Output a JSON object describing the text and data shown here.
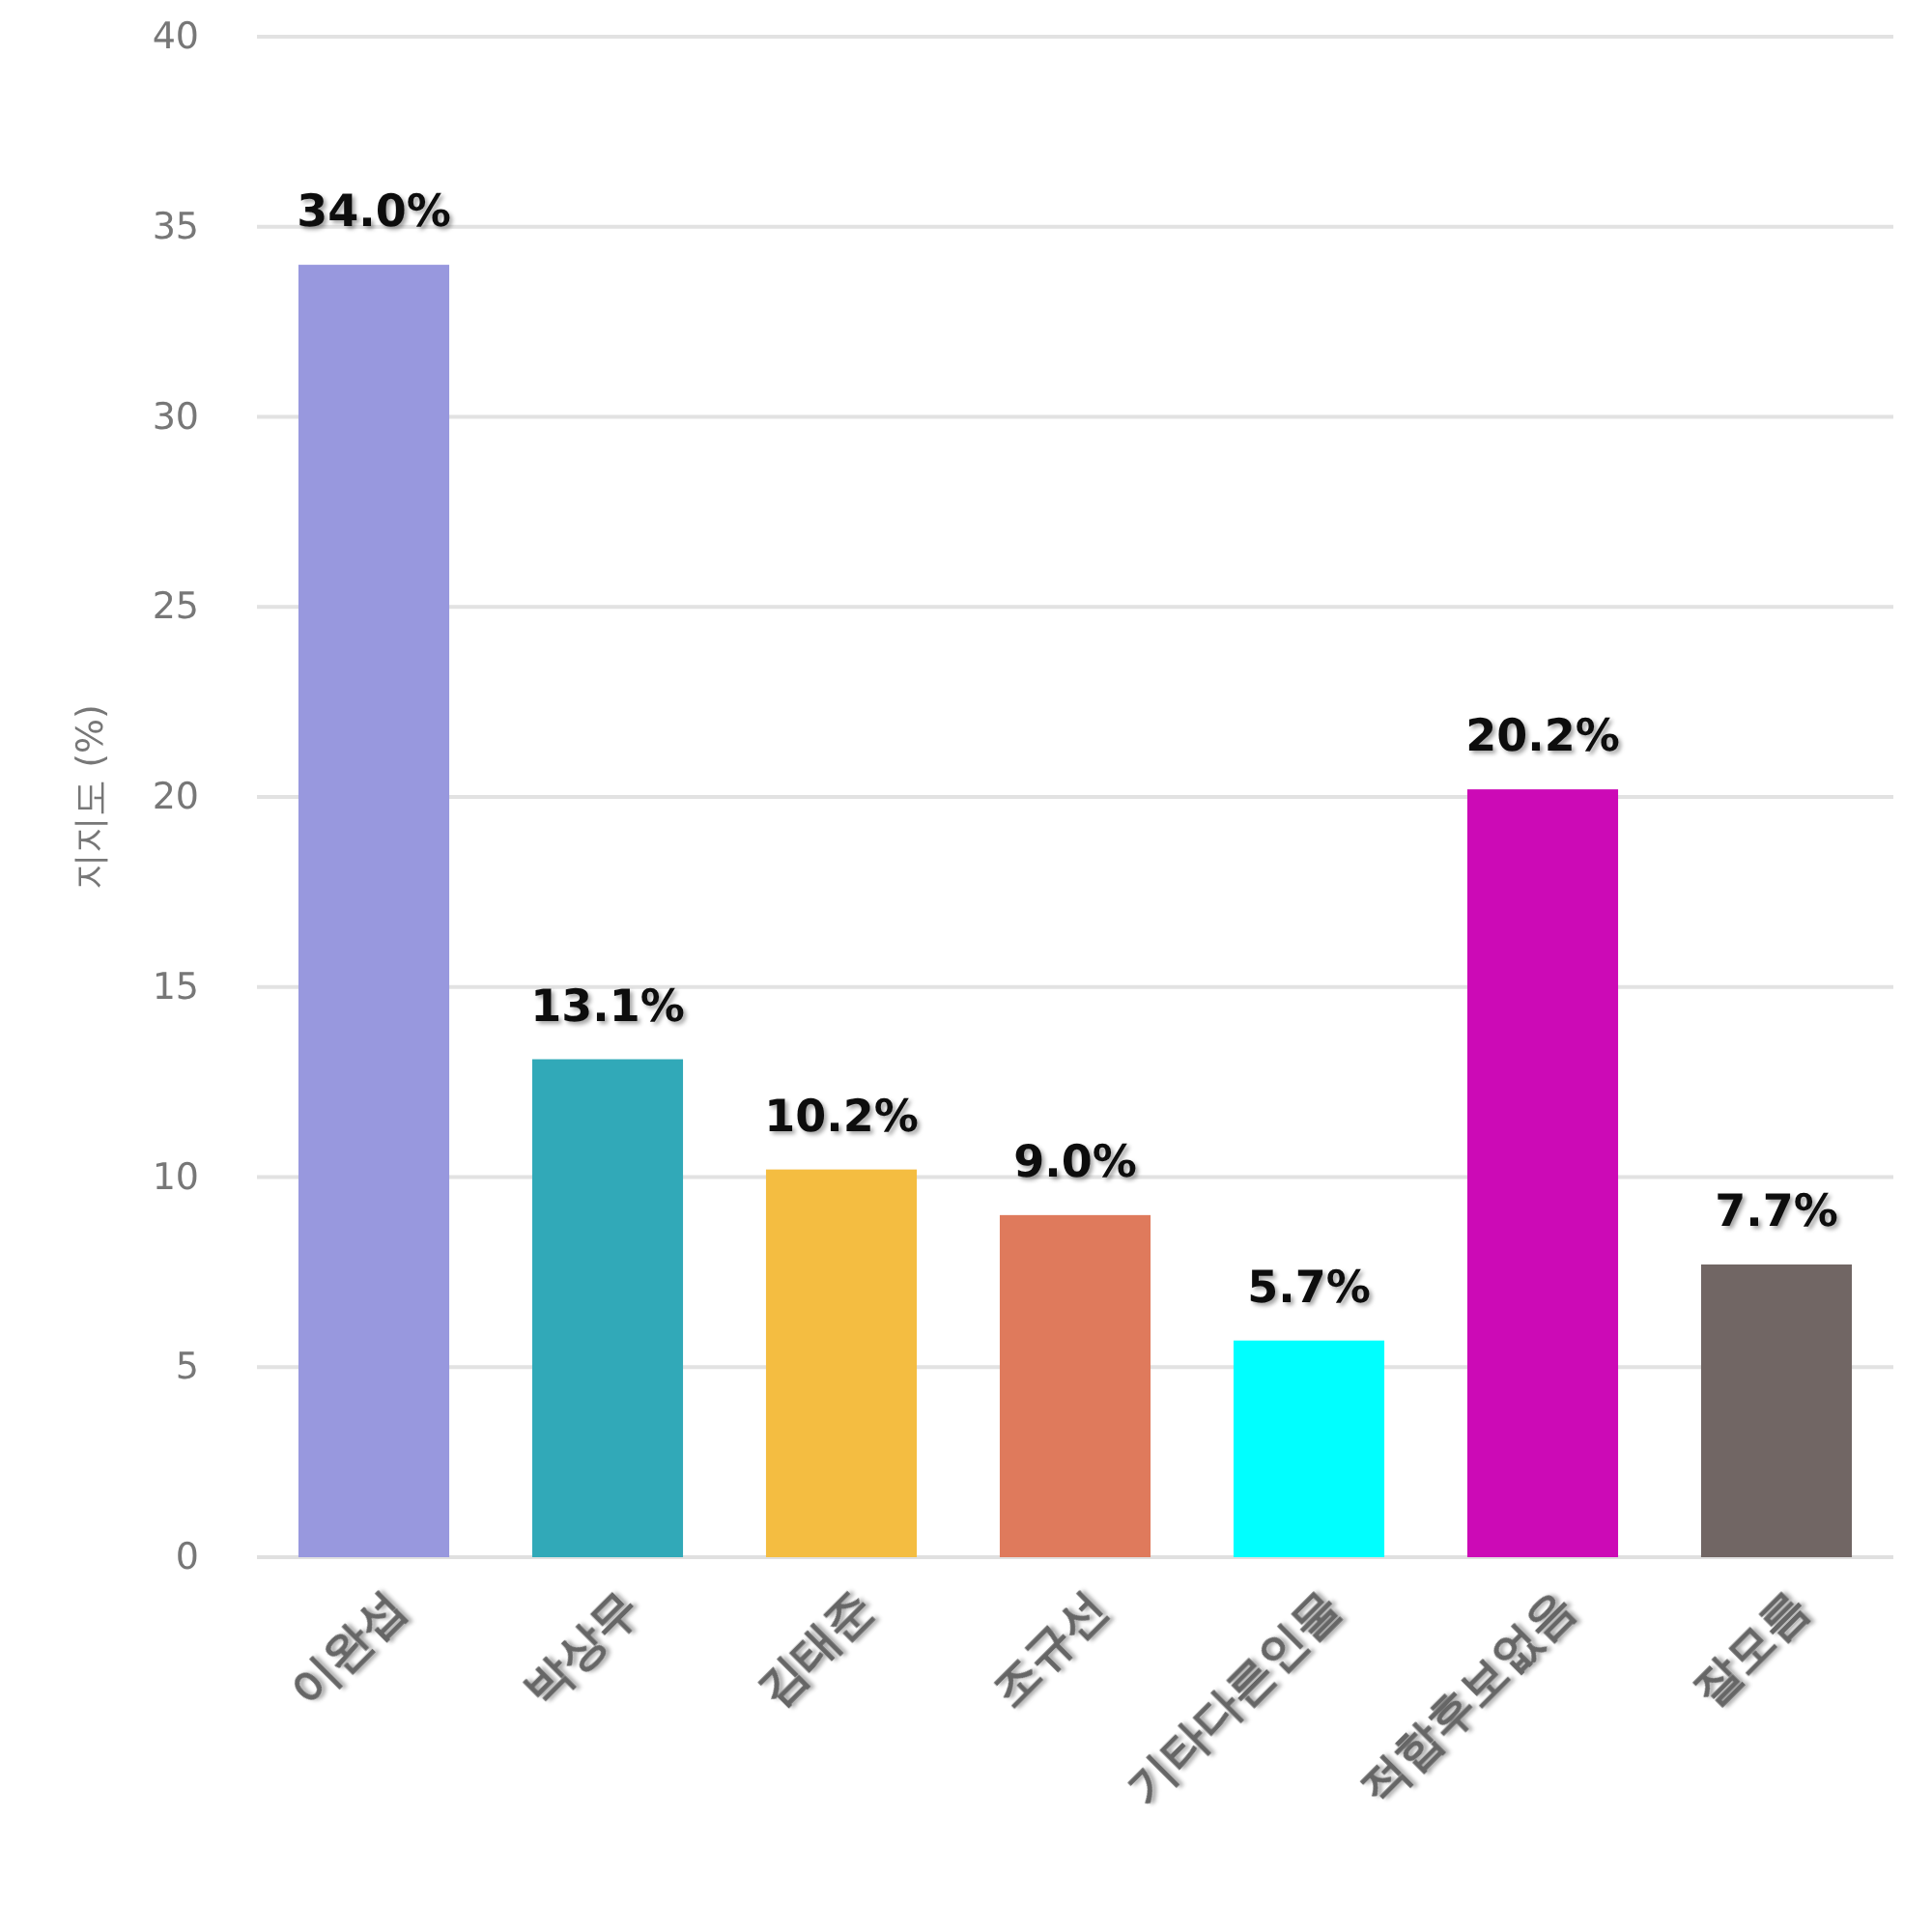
{
  "chart_data": {
    "type": "bar",
    "ylabel": "지지도 (%)",
    "categories": [
      "이완섭",
      "박상무",
      "김태준",
      "조규선",
      "기타다른인물",
      "적합후보없음",
      "잘모름"
    ],
    "values": [
      34.0,
      13.1,
      10.2,
      9.0,
      5.7,
      20.2,
      7.7
    ],
    "colors": [
      "#9898de",
      "#31a9b8",
      "#f4bd41",
      "#df7a5c",
      "#00ffff",
      "#cc0ab6",
      "#716664"
    ],
    "value_labels": [
      "34.0%",
      "13.1%",
      "10.2%",
      "9.0%",
      "5.7%",
      "20.2%",
      "7.7%"
    ],
    "ylim": [
      0,
      40
    ],
    "yticks": [
      0,
      5,
      10,
      15,
      20,
      25,
      30,
      35,
      40
    ],
    "grid": "y"
  }
}
